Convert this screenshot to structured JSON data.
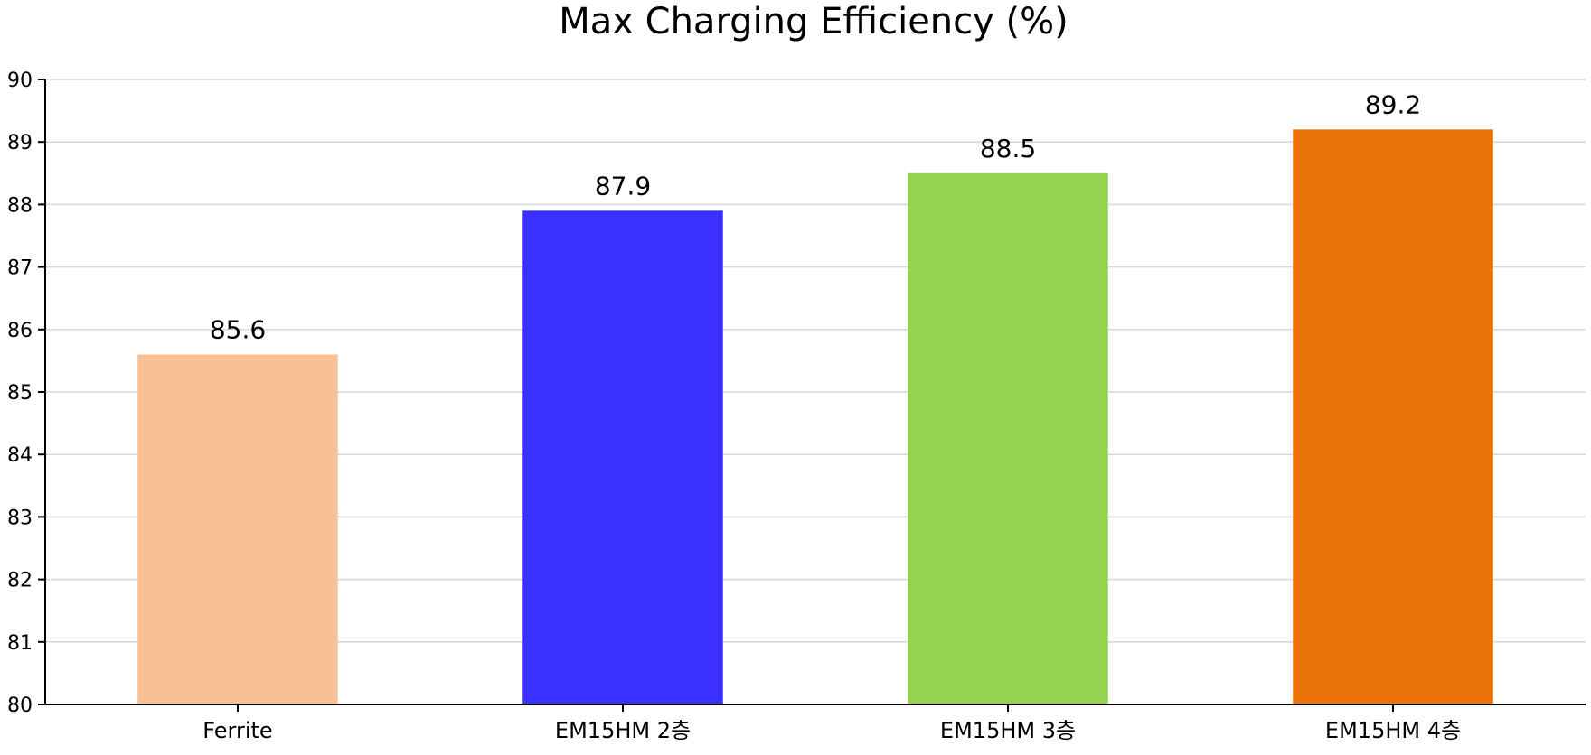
{
  "chart_data": {
    "type": "bar",
    "title": "Max Charging Efficiency (%)",
    "xlabel": "",
    "ylabel": "",
    "categories": [
      "Ferrite",
      "EM15HM 2층",
      "EM15HM 3층",
      "EM15HM 4층"
    ],
    "values": [
      85.6,
      87.9,
      88.5,
      89.2
    ],
    "data_labels": [
      "85.6",
      "87.9",
      "88.5",
      "89.2"
    ],
    "colors": [
      "#f8c194",
      "#3a30ff",
      "#93d351",
      "#e8740a"
    ],
    "ylim": [
      80,
      90
    ],
    "yticks": [
      80,
      81,
      82,
      83,
      84,
      85,
      86,
      87,
      88,
      89,
      90
    ],
    "grid": "horizontal",
    "legend": "none"
  }
}
